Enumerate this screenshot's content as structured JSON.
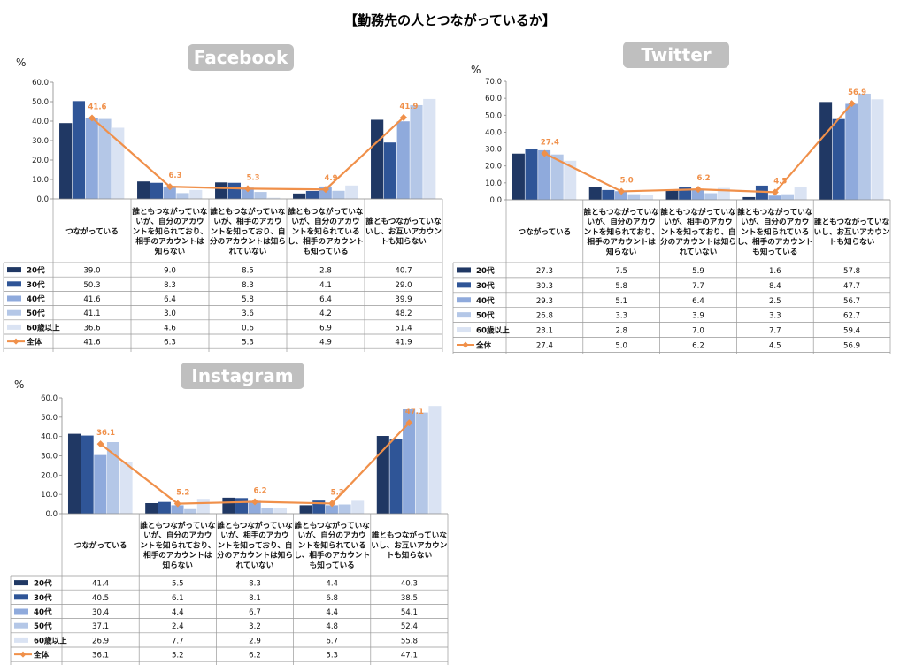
{
  "title": "【勤務先の人とつながっているか】",
  "colors": {
    "20代": "#203864",
    "30代": "#2f5597",
    "40代": "#8faadc",
    "50代": "#b4c7e7",
    "60歳以上": "#dae3f3",
    "全体": "#f0904a",
    "badge": "#bfbfbf"
  },
  "chart_data": [
    {
      "type": "bar",
      "name": "Facebook",
      "unit": "%",
      "ylim": [
        0,
        60
      ],
      "yticks": [
        "0.0",
        "10.0",
        "20.0",
        "30.0",
        "40.0",
        "50.0",
        "60.0"
      ],
      "categories": [
        "つながっている",
        "誰ともつながっていないが、自分のアカウントを知られており、相手のアカウントは知らない",
        "誰ともつながっていないが、相手のアカウントを知っており、自分のアカウントは知られていない",
        "誰ともつながっていないが、自分のアカウントを知られているし、相手のアカウントも知っている",
        "誰ともつながっていないし、お互いアカウントも知らない"
      ],
      "series": [
        {
          "name": "20代",
          "values": [
            39.0,
            9.0,
            8.5,
            2.8,
            40.7
          ]
        },
        {
          "name": "30代",
          "values": [
            50.3,
            8.3,
            8.3,
            4.1,
            29.0
          ]
        },
        {
          "name": "40代",
          "values": [
            41.6,
            6.4,
            5.8,
            6.4,
            39.9
          ]
        },
        {
          "name": "50代",
          "values": [
            41.1,
            3.0,
            3.6,
            4.2,
            48.2
          ]
        },
        {
          "name": "60歳以上",
          "values": [
            36.6,
            4.6,
            0.6,
            6.9,
            51.4
          ]
        },
        {
          "name": "全体",
          "values": [
            41.6,
            6.3,
            5.3,
            4.9,
            41.9
          ],
          "kind": "line"
        }
      ]
    },
    {
      "type": "bar",
      "name": "Twitter",
      "unit": "%",
      "ylim": [
        0,
        70
      ],
      "yticks": [
        "0.0",
        "10.0",
        "20.0",
        "30.0",
        "40.0",
        "50.0",
        "60.0",
        "70.0"
      ],
      "categories": [
        "つながっている",
        "誰ともつながっていないが、自分のアカウントを知られており、相手のアカウントは知らない",
        "誰ともつながっていないが、相手のアカウントを知っており、自分のアカウントは知られていない",
        "誰ともつながっていないが、自分のアカウントを知られているし、相手のアカウントも知っている",
        "誰ともつながっていないし、お互いアカウントも知らない"
      ],
      "series": [
        {
          "name": "20代",
          "values": [
            27.3,
            7.5,
            5.9,
            1.6,
            57.8
          ]
        },
        {
          "name": "30代",
          "values": [
            30.3,
            5.8,
            7.7,
            8.4,
            47.7
          ]
        },
        {
          "name": "40代",
          "values": [
            29.3,
            5.1,
            6.4,
            2.5,
            56.7
          ]
        },
        {
          "name": "50代",
          "values": [
            26.8,
            3.3,
            3.9,
            3.3,
            62.7
          ]
        },
        {
          "name": "60歳以上",
          "values": [
            23.1,
            2.8,
            7.0,
            7.7,
            59.4
          ]
        },
        {
          "name": "全体",
          "values": [
            27.4,
            5.0,
            6.2,
            4.5,
            56.9
          ],
          "kind": "line"
        }
      ]
    },
    {
      "type": "bar",
      "name": "Instagram",
      "unit": "%",
      "ylim": [
        0,
        60
      ],
      "yticks": [
        "0.0",
        "10.0",
        "20.0",
        "30.0",
        "40.0",
        "50.0",
        "60.0"
      ],
      "categories": [
        "つながっている",
        "誰ともつながっていないが、自分のアカウントを知られており、相手のアカウントは知らない",
        "誰ともつながっていないが、相手のアカウントを知っており、自分のアカウントは知られていない",
        "誰ともつながっていないが、自分のアカウントを知られているし、相手のアカウントも知っている",
        "誰ともつながっていないし、お互いアカウントも知らない"
      ],
      "series": [
        {
          "name": "20代",
          "values": [
            41.4,
            5.5,
            8.3,
            4.4,
            40.3
          ]
        },
        {
          "name": "30代",
          "values": [
            40.5,
            6.1,
            8.1,
            6.8,
            38.5
          ]
        },
        {
          "name": "40代",
          "values": [
            30.4,
            4.4,
            6.7,
            4.4,
            54.1
          ]
        },
        {
          "name": "50代",
          "values": [
            37.1,
            2.4,
            3.2,
            4.8,
            52.4
          ]
        },
        {
          "name": "60歳以上",
          "values": [
            26.9,
            7.7,
            2.9,
            6.7,
            55.8
          ]
        },
        {
          "name": "全体",
          "values": [
            36.1,
            5.2,
            6.2,
            5.3,
            47.1
          ],
          "kind": "line"
        }
      ]
    }
  ]
}
